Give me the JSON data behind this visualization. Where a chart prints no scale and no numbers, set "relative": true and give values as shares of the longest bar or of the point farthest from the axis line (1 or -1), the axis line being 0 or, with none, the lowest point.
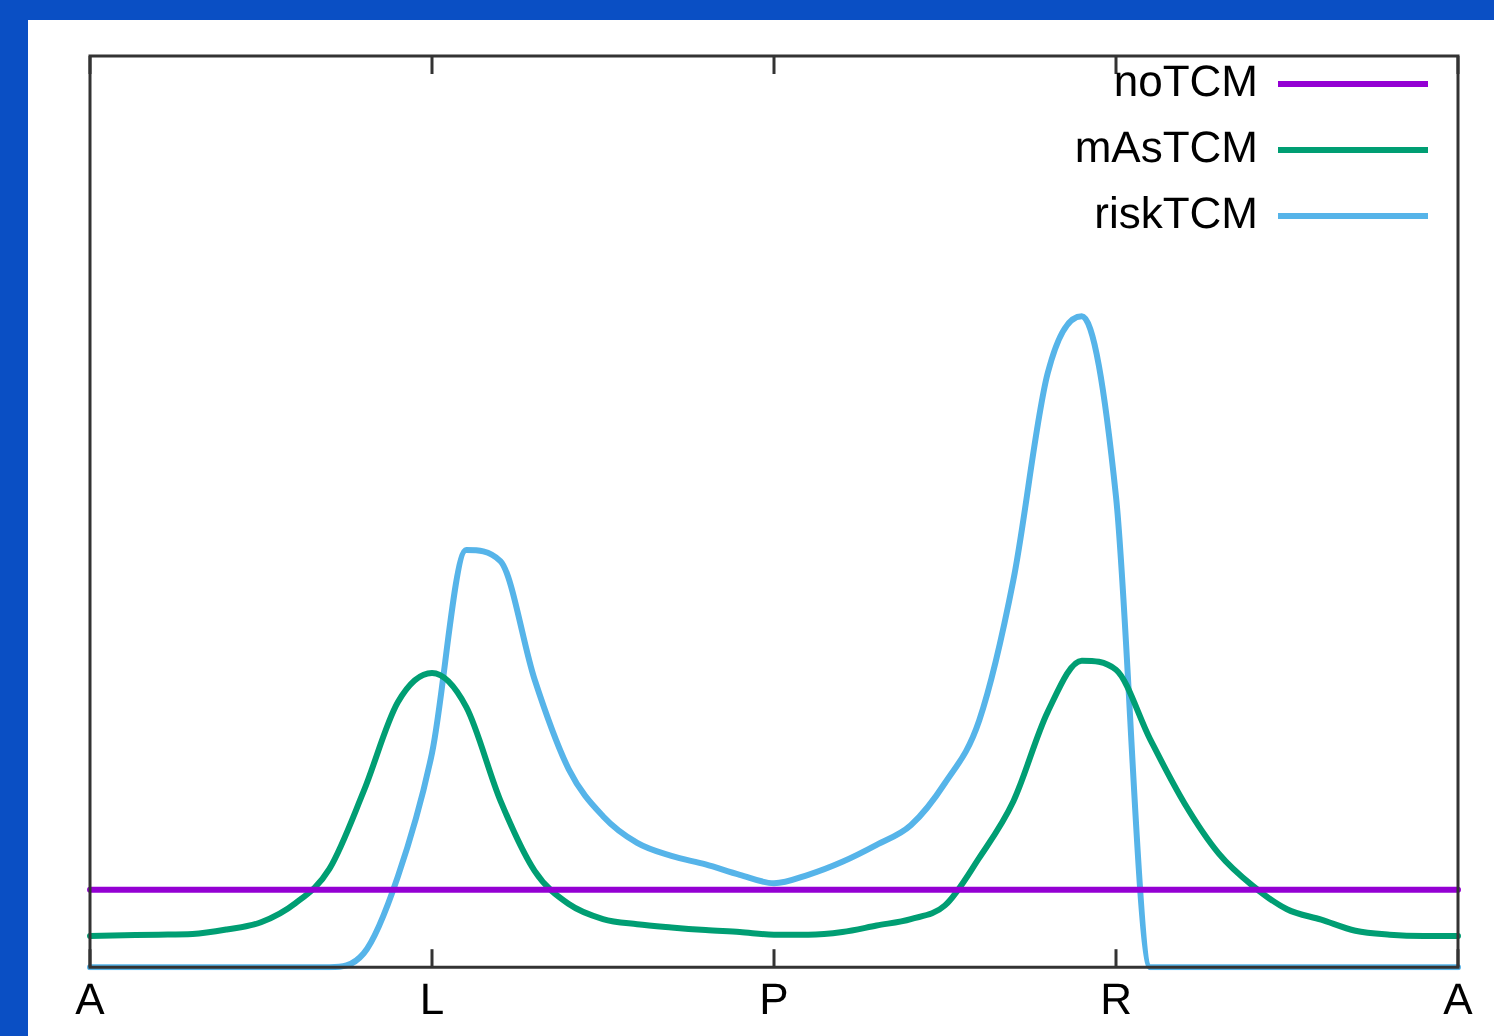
{
  "chart_data": {
    "type": "line",
    "relative": true,
    "categories": [
      "A",
      null,
      null,
      null,
      null,
      null,
      null,
      null,
      null,
      null,
      "L",
      null,
      null,
      null,
      null,
      null,
      null,
      null,
      null,
      null,
      "P",
      null,
      null,
      null,
      null,
      null,
      null,
      null,
      null,
      null,
      "R",
      null,
      null,
      null,
      null,
      null,
      null,
      null,
      null,
      null,
      "A"
    ],
    "legend": "top right",
    "grid": false,
    "marker": "none",
    "line_style": "solid",
    "series": [
      {
        "name": "noTCM",
        "color": "#9400d3",
        "values": [
          0.119,
          0.119,
          0.119,
          0.119,
          0.119,
          0.119,
          0.119,
          0.119,
          0.119,
          0.119,
          0.119,
          0.119,
          0.119,
          0.119,
          0.119,
          0.119,
          0.119,
          0.119,
          0.119,
          0.119,
          0.119,
          0.119,
          0.119,
          0.119,
          0.119,
          0.119,
          0.119,
          0.119,
          0.119,
          0.119,
          0.119,
          0.119,
          0.119,
          0.119,
          0.119,
          0.119,
          0.119,
          0.119,
          0.119,
          0.119,
          0.119
        ]
      },
      {
        "name": "mAsTCM",
        "color": "#009e73",
        "values": [
          0.048,
          0.049,
          0.05,
          0.051,
          0.058,
          0.069,
          0.098,
          0.151,
          0.27,
          0.407,
          0.452,
          0.4,
          0.256,
          0.148,
          0.097,
          0.074,
          0.066,
          0.061,
          0.057,
          0.054,
          0.05,
          0.05,
          0.054,
          0.064,
          0.074,
          0.095,
          0.168,
          0.255,
          0.392,
          0.471,
          0.457,
          0.35,
          0.252,
          0.175,
          0.125,
          0.089,
          0.073,
          0.056,
          0.05,
          0.048,
          0.048
        ]
      },
      {
        "name": "riskTCM",
        "color": "#56b4e9",
        "values": [
          0,
          0,
          0,
          0,
          0,
          0,
          0,
          0,
          0.021,
          0.139,
          0.329,
          0.641,
          0.624,
          0.442,
          0.304,
          0.232,
          0.191,
          0.171,
          0.158,
          0.142,
          0.129,
          0.142,
          0.162,
          0.188,
          0.218,
          0.283,
          0.379,
          0.595,
          0.912,
          1,
          0.723,
          0,
          0,
          0,
          0,
          0,
          0,
          0,
          0,
          0,
          0
        ]
      }
    ]
  }
}
